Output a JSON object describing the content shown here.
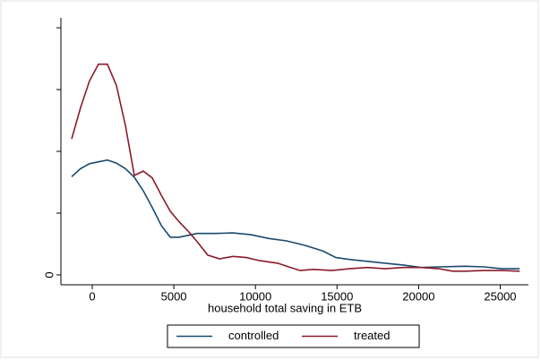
{
  "chart_data": {
    "type": "line",
    "x_label": "household total saving in ETB",
    "xlim": [
      -1920,
      26730
    ],
    "xticks": [
      0,
      5000,
      10000,
      15000,
      20000,
      25000
    ],
    "ylim": [
      -0.16,
      4.16
    ],
    "yticks": [
      0
    ],
    "ytick_marks": [
      1,
      2,
      3,
      4
    ],
    "legend": "bottom",
    "series": [
      {
        "name": "controlled",
        "color": "#1a4a6e",
        "x": [
          -1260,
          -710,
          -170,
          380,
          930,
          1480,
          2030,
          2580,
          3130,
          3680,
          4230,
          4780,
          5320,
          5870,
          6420,
          7520,
          8620,
          9720,
          10820,
          11910,
          13010,
          14110,
          14930,
          15760,
          16850,
          17950,
          19050,
          20150,
          21250,
          22890,
          23990,
          25090,
          26190
        ],
        "values": [
          1.59,
          1.72,
          1.8,
          1.83,
          1.86,
          1.81,
          1.72,
          1.58,
          1.36,
          1.09,
          0.8,
          0.61,
          0.61,
          0.64,
          0.67,
          0.67,
          0.68,
          0.65,
          0.59,
          0.55,
          0.48,
          0.39,
          0.28,
          0.25,
          0.22,
          0.19,
          0.16,
          0.12,
          0.13,
          0.14,
          0.13,
          0.1,
          0.1
        ]
      },
      {
        "name": "treated",
        "color": "#8b1a2b",
        "x": [
          -1260,
          -710,
          -170,
          380,
          930,
          1480,
          2030,
          2580,
          3130,
          3680,
          4230,
          4780,
          5320,
          5870,
          6420,
          7080,
          7800,
          8620,
          9440,
          10270,
          11360,
          11910,
          12740,
          13560,
          14660,
          15760,
          16850,
          17950,
          19050,
          20150,
          21250,
          22070,
          22890,
          23990,
          25090,
          26190
        ],
        "values": [
          2.2,
          2.71,
          3.14,
          3.41,
          3.41,
          3.07,
          2.42,
          1.61,
          1.68,
          1.57,
          1.29,
          1.03,
          0.86,
          0.71,
          0.54,
          0.32,
          0.26,
          0.3,
          0.28,
          0.23,
          0.19,
          0.14,
          0.07,
          0.09,
          0.07,
          0.1,
          0.12,
          0.1,
          0.12,
          0.12,
          0.1,
          0.06,
          0.06,
          0.07,
          0.07,
          0.06
        ]
      }
    ]
  }
}
